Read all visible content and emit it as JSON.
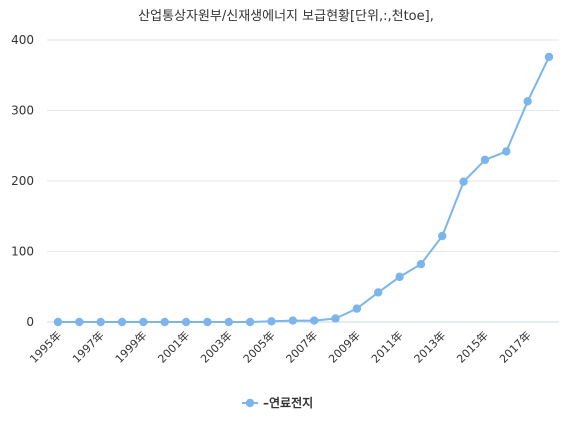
{
  "chart_data": {
    "type": "line",
    "title": "산업통상자원부/신재생에너지 보급현황[단위,:,천toe],",
    "xlabel": "",
    "ylabel": "",
    "ylim": [
      0,
      400
    ],
    "y_ticks": [
      0,
      100,
      200,
      300,
      400
    ],
    "grid": true,
    "legend_position": "bottom",
    "x": [
      "1995年",
      "1996年",
      "1997年",
      "1998年",
      "1999年",
      "2000年",
      "2001年",
      "2002年",
      "2003年",
      "2004年",
      "2005年",
      "2006年",
      "2007年",
      "2008年",
      "2009年",
      "2010年",
      "2011年",
      "2012年",
      "2013年",
      "2014年",
      "2015年",
      "2016年",
      "2017年",
      "2018年"
    ],
    "x_tick_labels": [
      "1995年",
      "1997年",
      "1999年",
      "2001年",
      "2003年",
      "2005年",
      "2007年",
      "2009年",
      "2011年",
      "2013年",
      "2015年",
      "2017年"
    ],
    "series": [
      {
        "name": "–연료전지",
        "color": "#7cb5ec",
        "values": [
          0,
          0,
          0,
          0,
          0,
          0,
          0,
          0,
          0,
          0,
          1,
          2,
          2,
          5,
          19,
          42,
          64,
          82,
          122,
          199,
          230,
          242,
          313,
          376
        ]
      }
    ]
  }
}
